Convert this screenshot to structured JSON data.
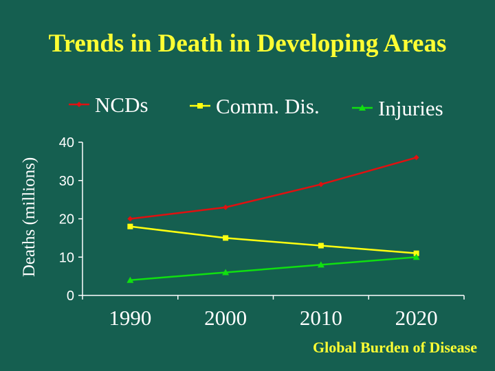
{
  "title": "Trends in Death in Developing Areas",
  "source": "Global Burden of Disease",
  "colors": {
    "background": "#155f50",
    "title": "#ffff33",
    "text": "#ffffff"
  },
  "chart_data": {
    "type": "line",
    "ylabel": "Deaths (millions)",
    "xlabel": "",
    "x": [
      "1990",
      "2000",
      "2010",
      "2020"
    ],
    "ylim": [
      0,
      40
    ],
    "yticks": [
      "0",
      "10",
      "20",
      "30",
      "40"
    ],
    "grid": false,
    "legend_position": "top",
    "series": [
      {
        "name": "NCDs",
        "color": "#e01010",
        "marker": "diamond",
        "values": [
          20,
          23,
          29,
          36
        ]
      },
      {
        "name": "Comm. Dis.",
        "color": "#ffff10",
        "marker": "square",
        "values": [
          18,
          15,
          13,
          11
        ]
      },
      {
        "name": "Injuries",
        "color": "#10e010",
        "marker": "triangle",
        "values": [
          4,
          6,
          8,
          10
        ]
      }
    ]
  }
}
